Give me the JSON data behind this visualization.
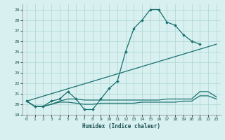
{
  "xlabel": "Humidex (Indice chaleur)",
  "bg_color": "#d8f0f0",
  "grid_color": "#aed4d4",
  "line_color": "#1a7070",
  "xlim": [
    -0.5,
    23.5
  ],
  "ylim": [
    19.0,
    29.5
  ],
  "yticks": [
    19,
    20,
    21,
    22,
    23,
    24,
    25,
    26,
    27,
    28,
    29
  ],
  "xticks": [
    0,
    1,
    2,
    3,
    4,
    5,
    6,
    7,
    8,
    9,
    10,
    11,
    12,
    13,
    14,
    15,
    16,
    17,
    18,
    19,
    20,
    21,
    22,
    23
  ],
  "line1_x": [
    0,
    1,
    2,
    3,
    4,
    5,
    6,
    7,
    8,
    9,
    10,
    11,
    12,
    13,
    14,
    15,
    16,
    17,
    18,
    19,
    20,
    21
  ],
  "line1_y": [
    20.3,
    19.8,
    19.8,
    20.3,
    20.5,
    21.2,
    20.5,
    19.5,
    19.5,
    20.5,
    21.5,
    22.2,
    25.0,
    27.2,
    28.0,
    29.0,
    29.0,
    27.8,
    27.5,
    26.6,
    26.0,
    25.7
  ],
  "line2_x": [
    0,
    23
  ],
  "line2_y": [
    20.3,
    25.7
  ],
  "line3_x": [
    0,
    1,
    2,
    3,
    4,
    5,
    6,
    7,
    8,
    9,
    10,
    11,
    12,
    13,
    14,
    15,
    16,
    17,
    18,
    19,
    20,
    21,
    22,
    23
  ],
  "line3_y": [
    20.3,
    19.8,
    19.8,
    20.0,
    20.3,
    20.5,
    20.5,
    20.4,
    20.4,
    20.4,
    20.4,
    20.4,
    20.4,
    20.4,
    20.4,
    20.4,
    20.4,
    20.5,
    20.5,
    20.5,
    20.5,
    21.2,
    21.2,
    20.7
  ],
  "line4_x": [
    0,
    1,
    2,
    3,
    4,
    5,
    6,
    7,
    8,
    9,
    10,
    11,
    12,
    13,
    14,
    15,
    16,
    17,
    18,
    19,
    20,
    21,
    22,
    23
  ],
  "line4_y": [
    20.3,
    19.8,
    19.8,
    20.0,
    20.2,
    20.2,
    20.1,
    20.0,
    20.0,
    20.1,
    20.1,
    20.1,
    20.1,
    20.1,
    20.2,
    20.2,
    20.2,
    20.2,
    20.2,
    20.3,
    20.3,
    20.8,
    20.8,
    20.5
  ]
}
